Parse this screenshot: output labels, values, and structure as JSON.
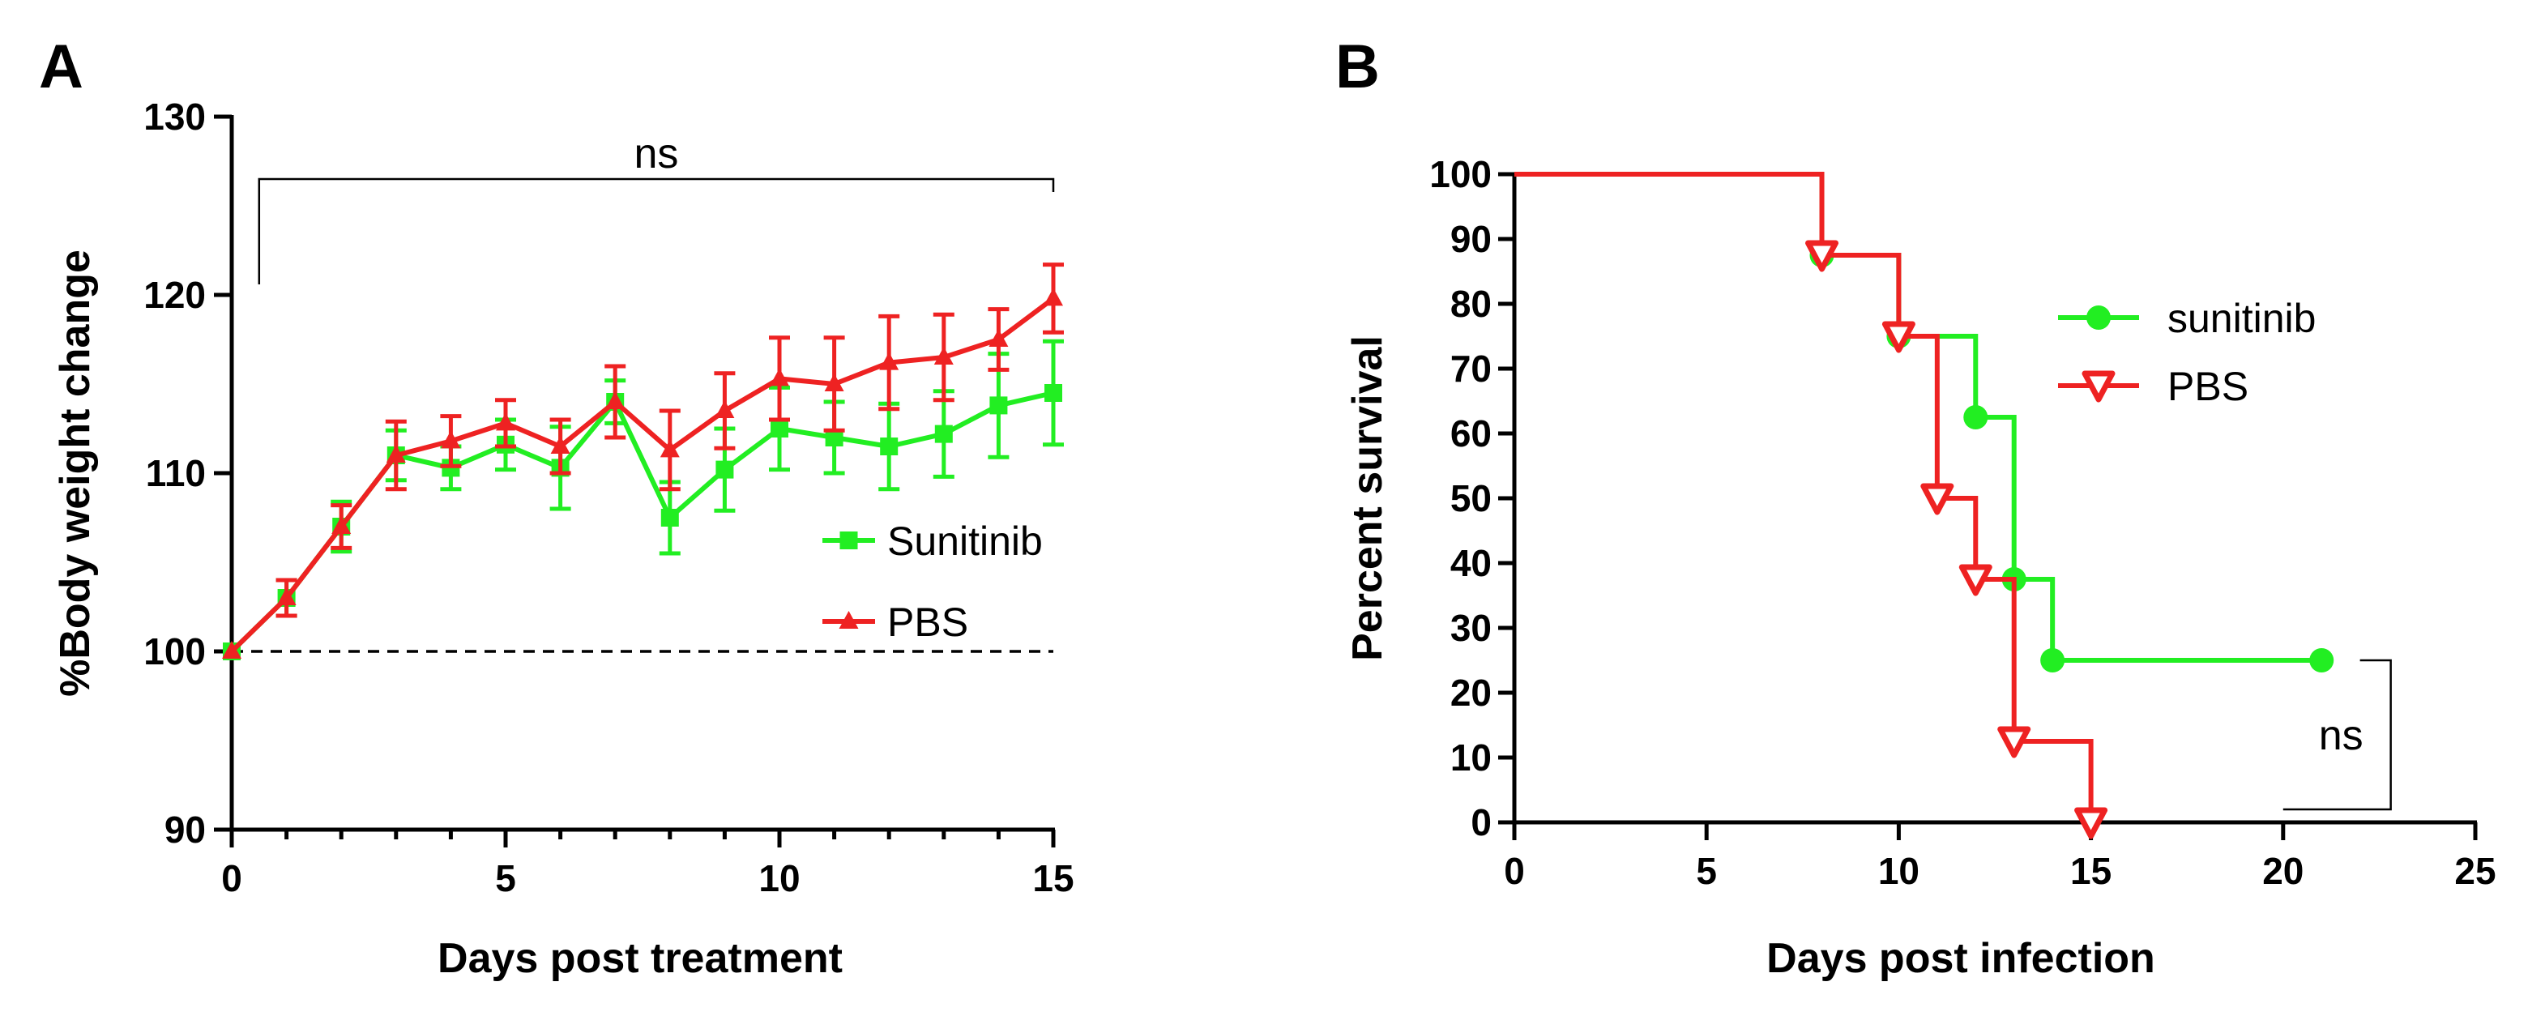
{
  "colors": {
    "sunitinib": "#22ee22",
    "pbs": "#ee2222",
    "axis": "#000000"
  },
  "chart_data": [
    {
      "panel": "A",
      "type": "line",
      "xlabel": "Days post treatment",
      "ylabel": "%Body weight change",
      "xlim": [
        0,
        15
      ],
      "ylim": [
        90,
        130
      ],
      "xticks": [
        0,
        5,
        10,
        15
      ],
      "yticks": [
        90,
        100,
        110,
        120,
        130
      ],
      "x": [
        0,
        1,
        2,
        3,
        4,
        5,
        6,
        7,
        8,
        9,
        10,
        11,
        12,
        13,
        14,
        15
      ],
      "series": [
        {
          "name": "Sunitinib",
          "color": "#22ee22",
          "marker": "square",
          "values": [
            100,
            103,
            107,
            111,
            110.3,
            111.6,
            110.3,
            114,
            107.5,
            110.2,
            112.5,
            112,
            111.5,
            112.2,
            113.8,
            114.5
          ],
          "errors": [
            0,
            1,
            1.4,
            1.4,
            1.2,
            1.4,
            2.3,
            1.2,
            2.0,
            2.3,
            2.3,
            2.0,
            2.4,
            2.4,
            2.9,
            2.9
          ]
        },
        {
          "name": "PBS",
          "color": "#ee2222",
          "marker": "triangle-up",
          "values": [
            100,
            103,
            107,
            111,
            111.8,
            112.8,
            111.5,
            114,
            111.3,
            113.5,
            115.3,
            115,
            116.2,
            116.5,
            117.5,
            119.8
          ],
          "errors": [
            0,
            1,
            1.2,
            1.9,
            1.4,
            1.3,
            1.5,
            2.0,
            2.2,
            2.1,
            2.3,
            2.6,
            2.6,
            2.4,
            1.7,
            1.9
          ]
        }
      ],
      "reference_line": 100,
      "significance": {
        "label": "ns",
        "from_x": 0.5,
        "to_x": 15,
        "at_y": 126.5
      },
      "legend": {
        "position": "center-right",
        "entries": [
          "Sunitinib",
          "PBS"
        ]
      }
    },
    {
      "panel": "B",
      "type": "line",
      "subtype": "kaplan-meier",
      "xlabel": "Days post infection",
      "ylabel": "Percent survival",
      "xlim": [
        0,
        25
      ],
      "ylim": [
        0,
        100
      ],
      "xticks": [
        0,
        5,
        10,
        15,
        20,
        25
      ],
      "yticks": [
        0,
        10,
        20,
        30,
        40,
        50,
        60,
        70,
        80,
        90,
        100
      ],
      "series": [
        {
          "name": "sunitinib",
          "color": "#22ee22",
          "marker": "circle",
          "steps": [
            [
              0,
              100
            ],
            [
              8,
              87.5
            ],
            [
              10,
              75
            ],
            [
              12,
              62.5
            ],
            [
              13,
              37.5
            ],
            [
              14,
              25
            ],
            [
              21,
              25
            ]
          ],
          "marker_points": [
            [
              8,
              87.5
            ],
            [
              10,
              75
            ],
            [
              12,
              62.5
            ],
            [
              13,
              37.5
            ],
            [
              14,
              25
            ],
            [
              21,
              25
            ]
          ]
        },
        {
          "name": "PBS",
          "color": "#ee2222",
          "marker": "triangle-down",
          "steps": [
            [
              0,
              100
            ],
            [
              8,
              87.5
            ],
            [
              10,
              75
            ],
            [
              11,
              50
            ],
            [
              12,
              37.5
            ],
            [
              13,
              12.5
            ],
            [
              15,
              0
            ]
          ],
          "marker_points": [
            [
              8,
              87.5
            ],
            [
              10,
              75
            ],
            [
              11,
              50
            ],
            [
              12,
              37.5
            ],
            [
              13,
              12.5
            ],
            [
              15,
              0
            ]
          ]
        }
      ],
      "significance": {
        "label": "ns",
        "top_y": 25,
        "bottom_y": 2,
        "x_inner": 20,
        "x_outer": 22.8
      },
      "legend": {
        "position": "upper-right",
        "entries": [
          "sunitinib",
          "PBS"
        ]
      }
    }
  ]
}
